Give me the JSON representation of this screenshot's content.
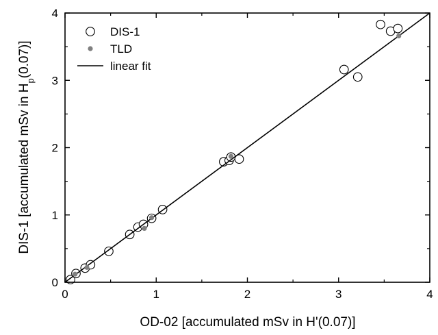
{
  "chart_data": {
    "type": "scatter",
    "xlabel": "OD-02 [accumulated mSv in H'(0.07)]",
    "ylabel": {
      "pre": "DIS-1 [accumulated mSv in H",
      "sub": "p",
      "post": "(0.07)]"
    },
    "xlim": [
      0,
      4
    ],
    "ylim": [
      0,
      4
    ],
    "xticks": [
      0,
      1,
      2,
      3,
      4
    ],
    "yticks": [
      0,
      1,
      2,
      3,
      4
    ],
    "legend_position": "top-left",
    "series": [
      {
        "name": "DIS-1",
        "marker": "open-circle",
        "points": [
          [
            0.06,
            0.04
          ],
          [
            0.12,
            0.13
          ],
          [
            0.22,
            0.21
          ],
          [
            0.28,
            0.26
          ],
          [
            0.48,
            0.46
          ],
          [
            0.71,
            0.71
          ],
          [
            0.8,
            0.82
          ],
          [
            0.86,
            0.86
          ],
          [
            0.95,
            0.95
          ],
          [
            1.07,
            1.08
          ],
          [
            1.74,
            1.79
          ],
          [
            1.8,
            1.81
          ],
          [
            1.82,
            1.86
          ],
          [
            1.91,
            1.83
          ],
          [
            3.06,
            3.16
          ],
          [
            3.21,
            3.05
          ],
          [
            3.46,
            3.83
          ],
          [
            3.57,
            3.73
          ],
          [
            3.65,
            3.77
          ]
        ]
      },
      {
        "name": "TLD",
        "marker": "filled-circle",
        "color": "#808080",
        "points": [
          [
            0.11,
            0.12
          ],
          [
            0.24,
            0.22
          ],
          [
            0.87,
            0.8
          ],
          [
            0.95,
            0.96
          ],
          [
            1.82,
            1.87
          ],
          [
            3.66,
            3.66
          ]
        ]
      },
      {
        "name": "linear fit",
        "type": "line",
        "points": [
          [
            0,
            0
          ],
          [
            4,
            4
          ]
        ]
      }
    ]
  }
}
